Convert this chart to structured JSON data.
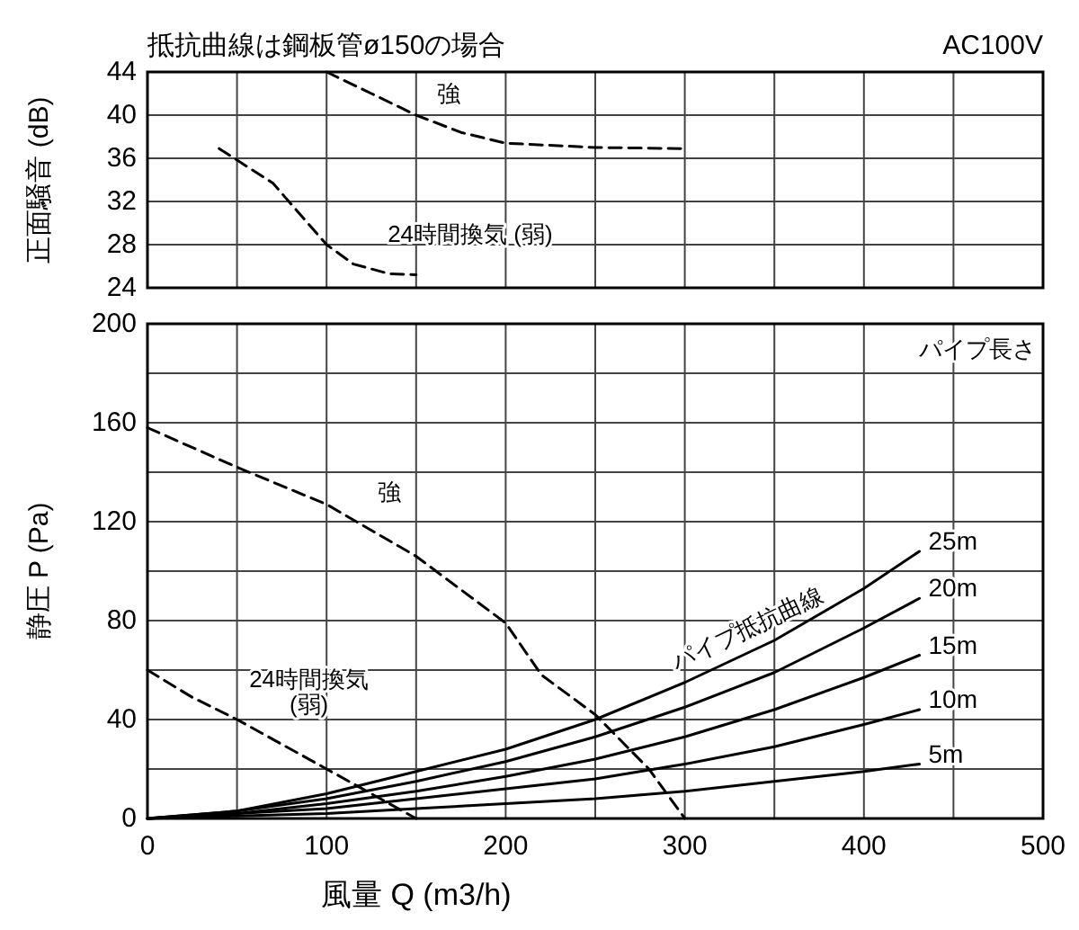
{
  "chart_data": [
    {
      "type": "line",
      "title": "抵抗曲線は鋼板管ø150の場合",
      "ylabel": "正面騒音 (dB)",
      "annotations": [
        "AC100V",
        {
          "text": "強",
          "x": 150,
          "y": 40
        },
        {
          "text": "24時間換気 (弱)",
          "x": 135,
          "y": 25.3
        }
      ],
      "xlim": [
        0,
        500
      ],
      "ylim": [
        24,
        44
      ],
      "xticks": [
        0,
        50,
        100,
        150,
        200,
        250,
        300,
        350,
        400,
        450,
        500
      ],
      "yticks": [
        24,
        28,
        32,
        36,
        40,
        44
      ],
      "tick_labels": "y",
      "grid": true,
      "line_style": "dashed",
      "series": [
        {
          "color": "#000000",
          "x": [
            100,
            125,
            150,
            175,
            200,
            250,
            300
          ],
          "values": [
            44,
            42,
            40,
            38.4,
            37.4,
            37,
            36.9
          ]
        },
        {
          "color": "#000000",
          "x": [
            40,
            70,
            100,
            115,
            135,
            150
          ],
          "values": [
            36.9,
            33.7,
            28,
            26.2,
            25.3,
            25.2
          ]
        }
      ]
    },
    {
      "type": "line",
      "xlabel": "風量 Q (m3/h)",
      "ylabel": "静圧 P (Pa)",
      "legend_title": "パイプ長さ",
      "annotations": [
        {
          "text": "強",
          "x": 100,
          "y": 127
        },
        {
          "text": "24時間換気\n(弱)",
          "x": 50,
          "y": 40
        },
        {
          "text": "パイプ抵抗曲線",
          "x": 340,
          "y": 69
        }
      ],
      "xlim": [
        0,
        500
      ],
      "ylim": [
        0,
        200
      ],
      "xticks": [
        0,
        {
          "value": 50,
          "label": null
        },
        100,
        {
          "value": 150,
          "label": null
        },
        200,
        {
          "value": 250,
          "label": null
        },
        300,
        {
          "value": 350,
          "label": null
        },
        400,
        {
          "value": 450,
          "label": null
        },
        500
      ],
      "yticks": [
        0,
        {
          "value": 20,
          "label": null
        },
        40,
        {
          "value": 60,
          "label": null
        },
        80,
        {
          "value": 100,
          "label": null
        },
        120,
        {
          "value": 140,
          "label": null
        },
        160,
        {
          "value": 180,
          "label": null
        },
        200
      ],
      "grid": true,
      "series": [
        {
          "color": "#000000",
          "line_style": "dashed",
          "x": [
            0,
            50,
            100,
            150,
            200,
            220,
            250,
            280,
            300
          ],
          "values": [
            158,
            142,
            127,
            106,
            79,
            58,
            42,
            20,
            0
          ]
        },
        {
          "color": "#000000",
          "line_style": "dashed",
          "x": [
            0,
            25,
            50,
            100,
            150
          ],
          "values": [
            60,
            49,
            40,
            20,
            0
          ]
        },
        {
          "name": "25m",
          "color": "#000000",
          "line_style": "solid",
          "x": [
            0,
            50,
            100,
            150,
            200,
            250,
            300,
            350,
            400,
            431
          ],
          "values": [
            0,
            3,
            10,
            19,
            28,
            40,
            55,
            72,
            93,
            108
          ]
        },
        {
          "name": "20m",
          "color": "#000000",
          "line_style": "solid",
          "x": [
            0,
            50,
            100,
            150,
            200,
            250,
            300,
            350,
            400,
            431
          ],
          "values": [
            0,
            3,
            8,
            15,
            23,
            33,
            45,
            59,
            77,
            89
          ]
        },
        {
          "name": "15m",
          "color": "#000000",
          "line_style": "solid",
          "x": [
            0,
            50,
            100,
            150,
            200,
            250,
            300,
            350,
            400,
            431
          ],
          "values": [
            0,
            2,
            6,
            11,
            17,
            24,
            33,
            44,
            57,
            66
          ]
        },
        {
          "name": "10m",
          "color": "#000000",
          "line_style": "solid",
          "x": [
            0,
            50,
            100,
            150,
            200,
            250,
            300,
            350,
            400,
            431
          ],
          "values": [
            0,
            2,
            4,
            8,
            12,
            16,
            22,
            29,
            38,
            44
          ]
        },
        {
          "name": "5m",
          "color": "#000000",
          "line_style": "solid",
          "x": [
            0,
            50,
            100,
            150,
            200,
            250,
            300,
            350,
            400,
            431
          ],
          "values": [
            0,
            1,
            2,
            4,
            6,
            8,
            11,
            15,
            19,
            22
          ]
        }
      ]
    }
  ]
}
